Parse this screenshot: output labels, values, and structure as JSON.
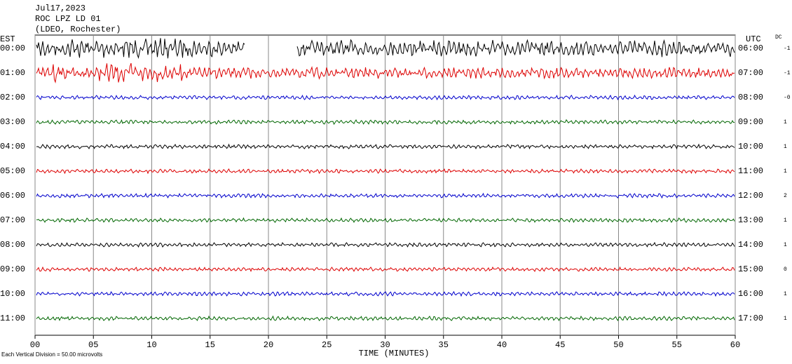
{
  "header": {
    "date": "Jul17,2023",
    "station": "ROC LPZ LD 01",
    "network": "(LDEO, Rochester)"
  },
  "left": {
    "title": "EST",
    "rows": [
      "00:00",
      "01:00",
      "02:00",
      "03:00",
      "04:00",
      "05:00",
      "06:00",
      "07:00",
      "08:00",
      "09:00",
      "10:00",
      "11:00"
    ]
  },
  "right": {
    "title": "UTC",
    "rows": [
      "06:00",
      "07:00",
      "08:00",
      "09:00",
      "10:00",
      "11:00",
      "12:00",
      "13:00",
      "14:00",
      "15:00",
      "16:00",
      "17:00"
    ]
  },
  "dc": {
    "title": "DC",
    "values": [
      "-1",
      "-1",
      "-0",
      "1",
      "1",
      "1",
      "2",
      "1",
      "1",
      "0",
      "1",
      "1"
    ]
  },
  "xaxis": {
    "label": "TIME (MINUTES)",
    "lim": [
      0,
      60
    ],
    "ticks": [
      {
        "value": 0,
        "label": "00"
      },
      {
        "value": 5,
        "label": "05"
      },
      {
        "value": 10,
        "label": "10"
      },
      {
        "value": 15,
        "label": "15"
      },
      {
        "value": 20,
        "label": "20"
      },
      {
        "value": 25,
        "label": "25"
      },
      {
        "value": 30,
        "label": "30"
      },
      {
        "value": 35,
        "label": "35"
      },
      {
        "value": 40,
        "label": "40"
      },
      {
        "value": 45,
        "label": "45"
      },
      {
        "value": 50,
        "label": "50"
      },
      {
        "value": 55,
        "label": "55"
      },
      {
        "value": 60,
        "label": "60"
      }
    ]
  },
  "trace_colors": [
    "#000000",
    "#dd0000",
    "#0000cc",
    "#006600"
  ],
  "footer": "Each Vertical Division =   50.00 microvolts"
}
